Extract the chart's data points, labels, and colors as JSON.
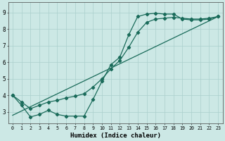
{
  "line1_x": [
    0,
    1,
    2,
    3,
    4,
    5,
    6,
    7,
    8,
    9,
    10,
    11,
    12,
    13,
    14,
    15,
    16,
    17,
    18,
    19,
    20,
    21,
    22,
    23
  ],
  "line1_y": [
    4.0,
    3.4,
    2.7,
    2.85,
    3.1,
    2.85,
    2.75,
    2.75,
    2.75,
    3.75,
    4.85,
    5.85,
    6.3,
    7.65,
    8.75,
    8.9,
    8.95,
    8.9,
    8.9,
    8.6,
    8.55,
    8.55,
    8.6,
    8.75
  ],
  "line2_x": [
    0,
    1,
    2,
    3,
    4,
    5,
    6,
    7,
    8,
    9,
    10,
    11,
    12,
    13,
    14,
    15,
    16,
    17,
    18,
    19,
    20,
    21,
    22,
    23
  ],
  "line2_y": [
    4.0,
    3.6,
    3.2,
    3.4,
    3.6,
    3.7,
    3.85,
    3.95,
    4.1,
    4.5,
    5.0,
    5.6,
    6.1,
    6.9,
    7.8,
    8.4,
    8.6,
    8.65,
    8.7,
    8.65,
    8.6,
    8.6,
    8.65,
    8.75
  ],
  "line3_x": [
    0,
    23
  ],
  "line3_y": [
    2.8,
    8.75
  ],
  "line_color": "#1a6b5a",
  "bg_color": "#cce8e5",
  "grid_color": "#aacfcc",
  "xlabel": "Humidex (Indice chaleur)",
  "xlim": [
    -0.5,
    23.5
  ],
  "ylim": [
    2.3,
    9.6
  ],
  "ytick_vals": [
    3,
    4,
    5,
    6,
    7,
    8,
    9
  ],
  "xtick_vals": [
    0,
    1,
    2,
    3,
    4,
    5,
    6,
    7,
    8,
    9,
    10,
    11,
    12,
    13,
    14,
    15,
    16,
    17,
    18,
    19,
    20,
    21,
    22,
    23
  ]
}
